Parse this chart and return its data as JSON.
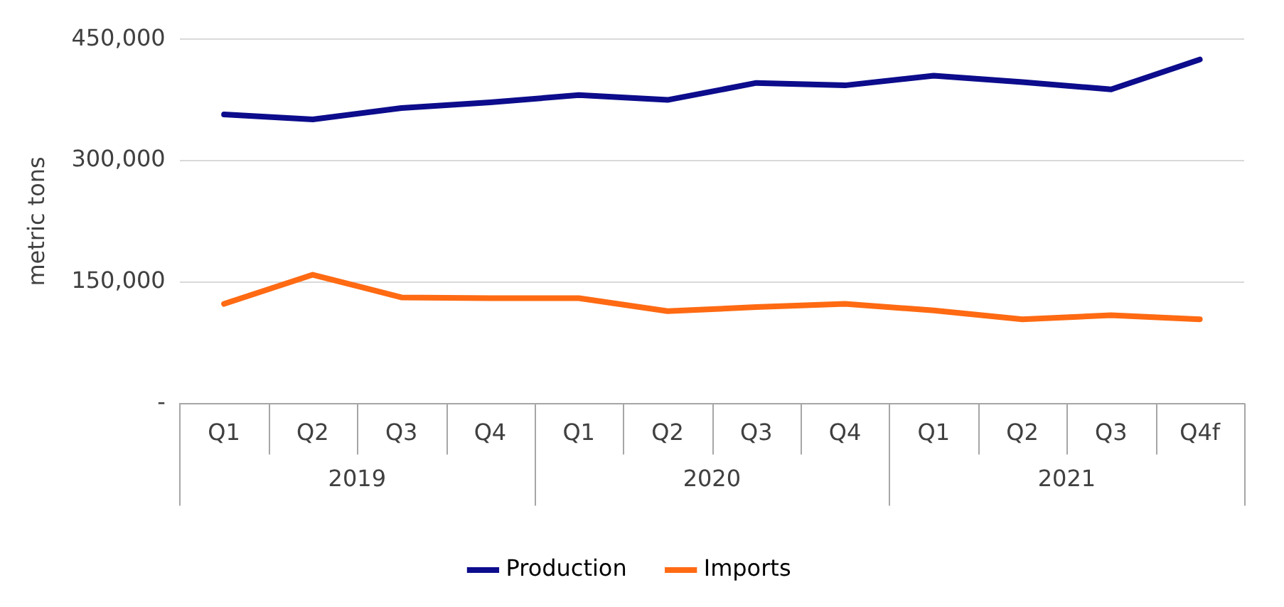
{
  "chart_data": {
    "type": "line",
    "ylabel": "metric tons",
    "categories": [
      "Q1",
      "Q2",
      "Q3",
      "Q4",
      "Q1",
      "Q2",
      "Q3",
      "Q4",
      "Q1",
      "Q2",
      "Q3",
      "Q4f"
    ],
    "series": [
      {
        "name": "Production",
        "color": "#0c0c8c",
        "values": [
          357000,
          351000,
          365000,
          372000,
          381000,
          375000,
          396000,
          393000,
          405000,
          397000,
          388000,
          425000
        ]
      },
      {
        "name": "Imports",
        "color": "#ff6a13",
        "values": [
          123000,
          159000,
          131000,
          130000,
          130000,
          114000,
          119000,
          123000,
          115000,
          104000,
          109000,
          104000
        ]
      }
    ],
    "annotations": [
      "2019",
      "2020",
      "2021"
    ],
    "ylim": [
      0,
      450000
    ],
    "yticks": [
      {
        "value": 0,
        "label": "-"
      },
      {
        "value": 150000,
        "label": "150,000"
      },
      {
        "value": 300000,
        "label": "300,000"
      },
      {
        "value": 450000,
        "label": "450,000"
      }
    ],
    "grid": "y",
    "legend": "bottom",
    "marker": "none",
    "line_style": "solid"
  }
}
